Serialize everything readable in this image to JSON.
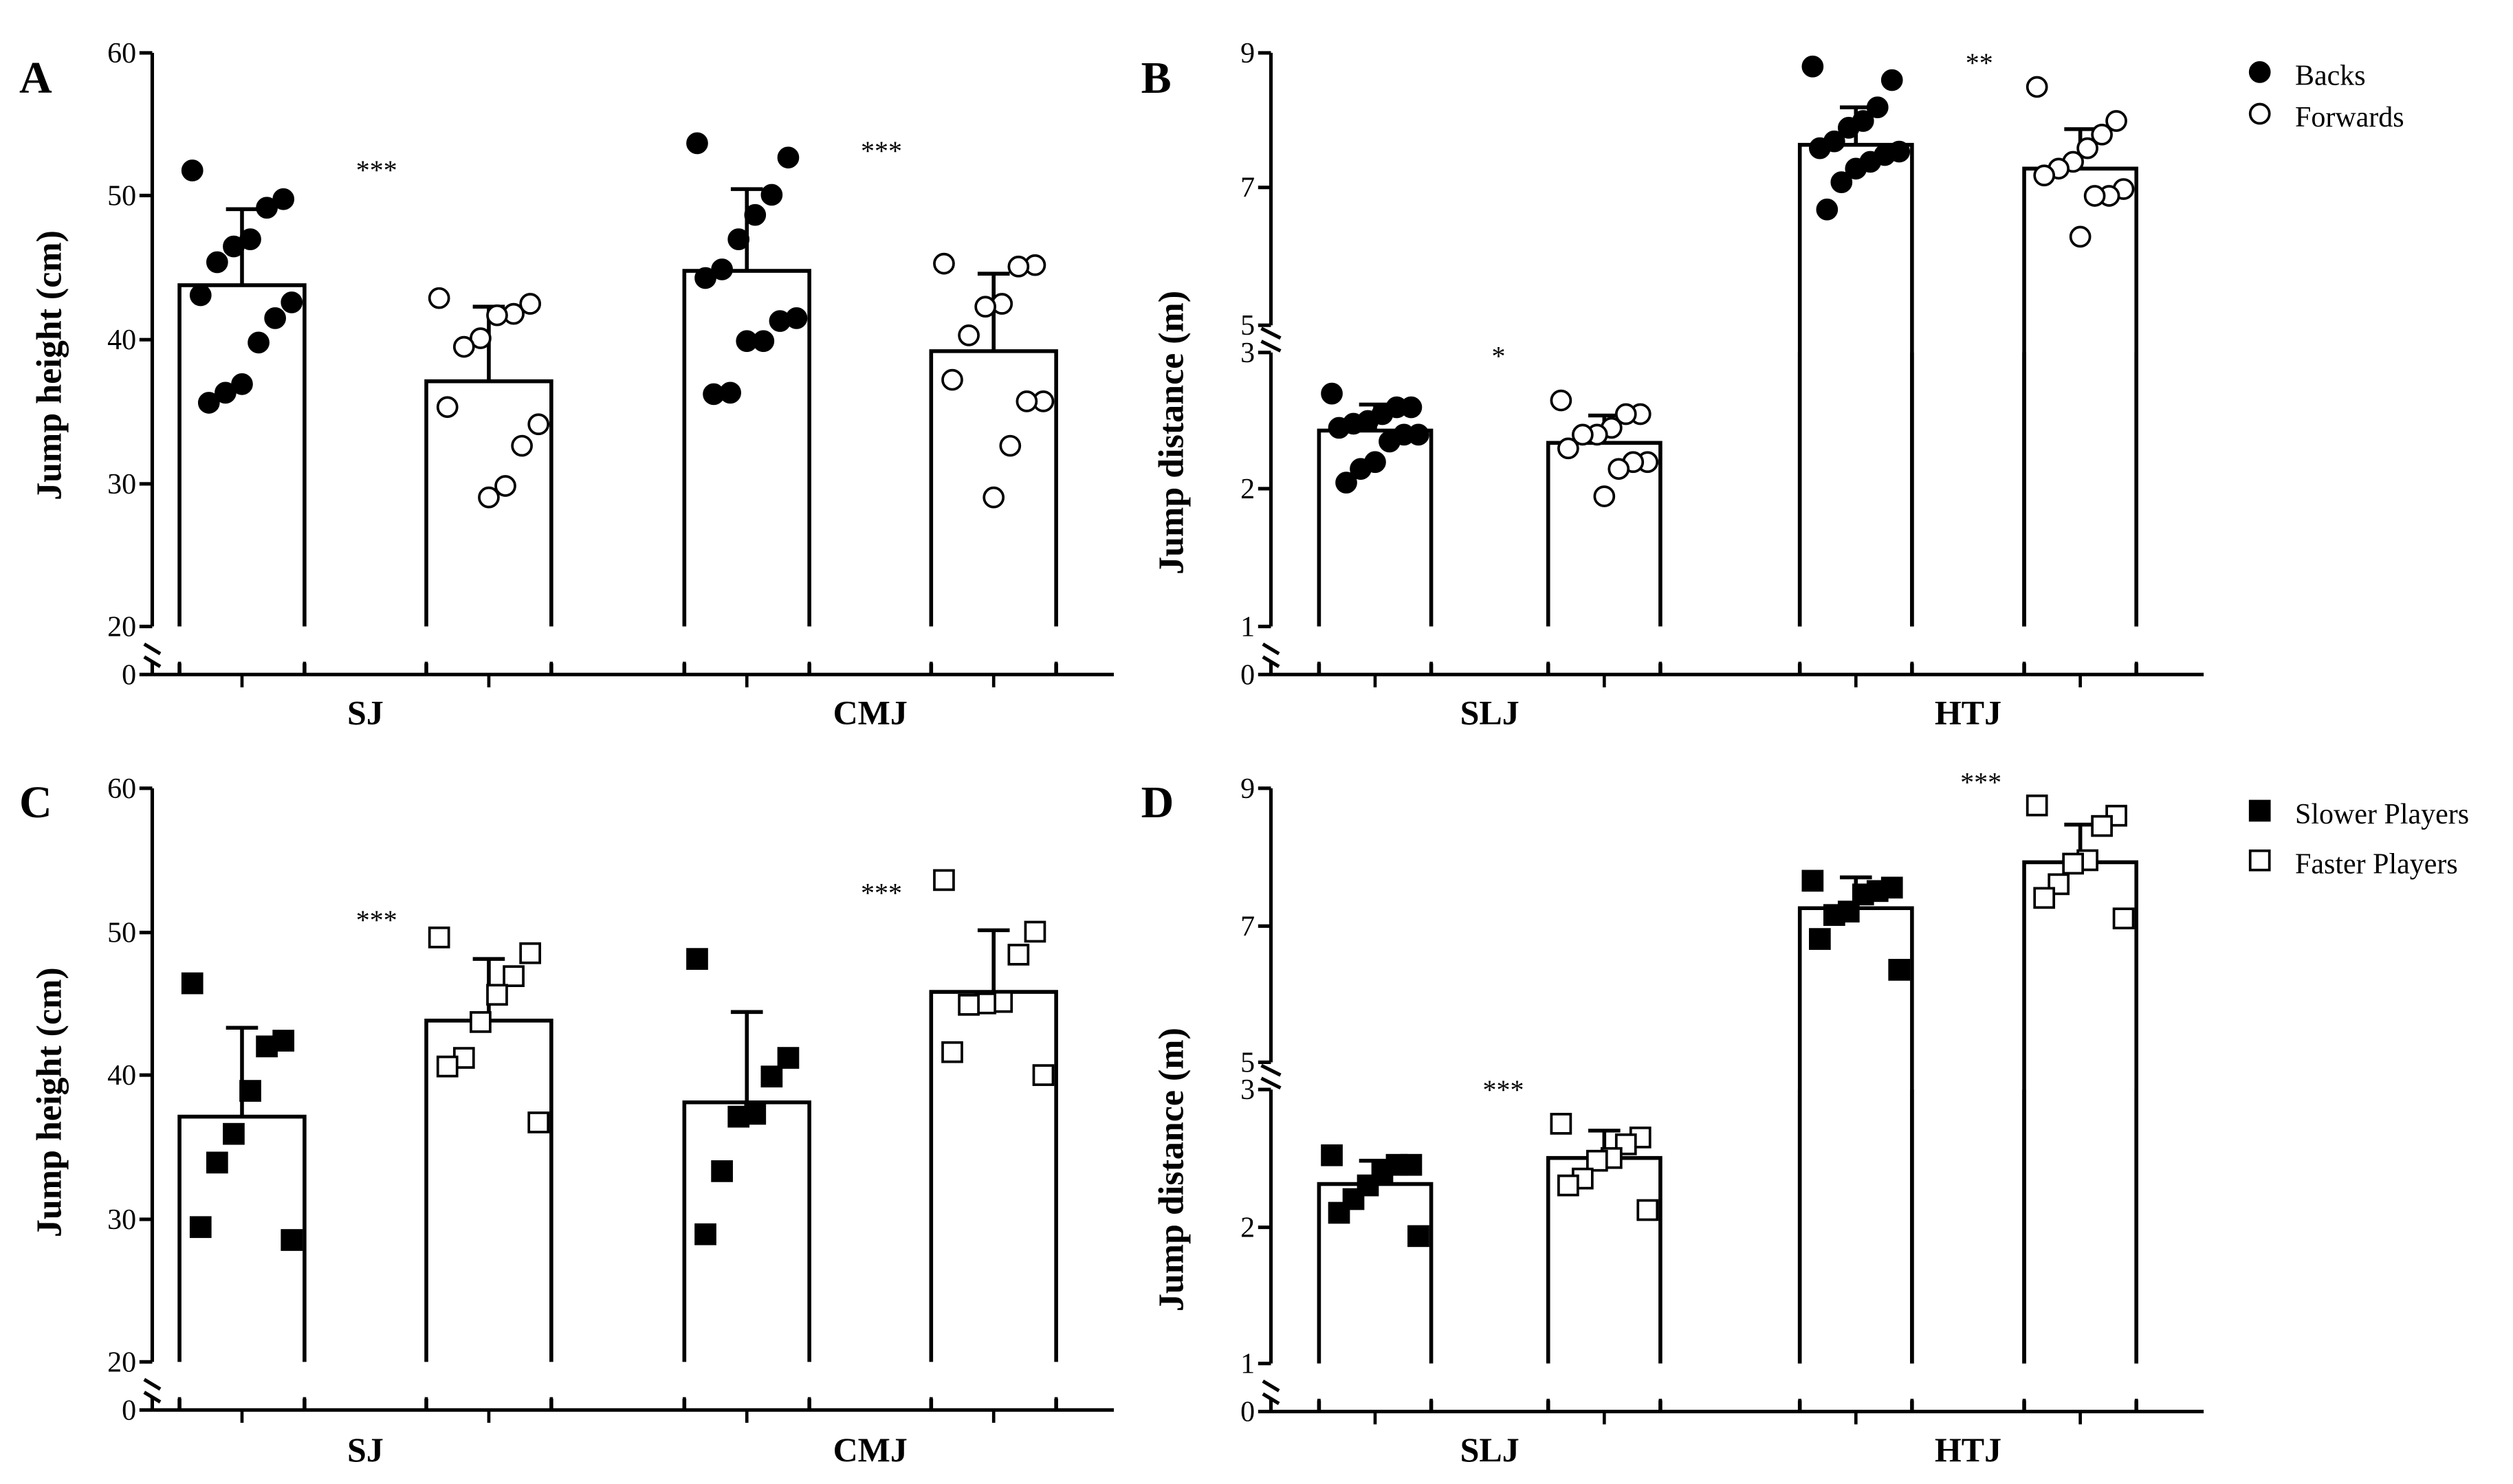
{
  "chart_data": [
    {
      "panel": "A",
      "type": "bar",
      "ylabel": "Jump height (cm)",
      "broken_axis": true,
      "yticks": [
        0,
        20,
        30,
        40,
        50,
        60
      ],
      "categories": [
        "SJ",
        "CMJ"
      ],
      "series": [
        {
          "name": "Backs",
          "marker": "filled-circle",
          "means": [
            43.8,
            44.8
          ],
          "sd": [
            5.3,
            5.7
          ],
          "points": [
            [
              51.8,
              49.8,
              49.2,
              47.0,
              46.5,
              45.4,
              43.1,
              42.6,
              41.5,
              39.8,
              36.9,
              36.3,
              35.6
            ],
            [
              53.7,
              52.7,
              50.1,
              48.7,
              47.0,
              44.9,
              44.3,
              41.5,
              41.3,
              39.9,
              39.9,
              36.3,
              36.2
            ]
          ]
        },
        {
          "name": "Forwards",
          "marker": "open-circle",
          "means": [
            37.1,
            39.2
          ],
          "sd": [
            5.2,
            5.4
          ],
          "points": [
            [
              42.9,
              42.5,
              41.8,
              41.7,
              40.1,
              39.5,
              35.3,
              34.1,
              32.6,
              29.8,
              29.0
            ],
            [
              45.3,
              45.2,
              45.1,
              42.5,
              42.3,
              40.3,
              37.2,
              35.7,
              35.7,
              32.6,
              29.0
            ]
          ]
        }
      ],
      "significance": [
        "***",
        "***"
      ]
    },
    {
      "panel": "B",
      "type": "bar",
      "ylabel": "Jump distance (m)",
      "broken_axis": true,
      "yticks": [
        0,
        1,
        2,
        3,
        5,
        7,
        9
      ],
      "categories": [
        "SLJ",
        "HTJ"
      ],
      "series": [
        {
          "name": "Backs",
          "marker": "filled-circle",
          "means": [
            2.43,
            7.65
          ],
          "sd": [
            0.19,
            0.55
          ],
          "points": [
            [
              2.7,
              2.6,
              2.6,
              2.55,
              2.5,
              2.48,
              2.45,
              2.4,
              2.4,
              2.35,
              2.2,
              2.15,
              2.05
            ],
            [
              8.8,
              8.6,
              8.2,
              8.0,
              7.9,
              7.7,
              7.6,
              7.55,
              7.5,
              7.4,
              7.3,
              7.1,
              6.7
            ]
          ]
        },
        {
          "name": "Forwards",
          "marker": "open-circle",
          "means": [
            2.34,
            7.3
          ],
          "sd": [
            0.2,
            0.58
          ],
          "points": [
            [
              2.65,
              2.55,
              2.55,
              2.45,
              2.4,
              2.4,
              2.3,
              2.2,
              2.2,
              2.15,
              1.95
            ],
            [
              8.5,
              8.0,
              7.8,
              7.6,
              7.4,
              7.3,
              7.2,
              7.0,
              6.9,
              6.9,
              6.3
            ]
          ]
        }
      ],
      "significance": [
        "*",
        "**"
      ],
      "legend": {
        "position": "top-right",
        "entries": [
          "Backs",
          "Forwards"
        ]
      }
    },
    {
      "panel": "C",
      "type": "bar",
      "ylabel": "Jump height (cm)",
      "broken_axis": true,
      "yticks": [
        0,
        20,
        30,
        40,
        50,
        60
      ],
      "categories": [
        "SJ",
        "CMJ"
      ],
      "series": [
        {
          "name": "Slower Players",
          "marker": "filled-square",
          "means": [
            37.1,
            38.1
          ],
          "sd": [
            6.2,
            6.3
          ],
          "points": [
            [
              46.4,
              42.4,
              42.0,
              38.9,
              35.9,
              33.9,
              29.4,
              28.5
            ],
            [
              48.1,
              41.2,
              39.9,
              37.3,
              37.1,
              33.3,
              28.9
            ]
          ]
        },
        {
          "name": "Faster Players",
          "marker": "open-square",
          "means": [
            43.8,
            45.8
          ],
          "sd": [
            4.3,
            4.3
          ],
          "points": [
            [
              49.6,
              48.5,
              46.9,
              45.6,
              43.7,
              41.2,
              40.6,
              36.7
            ],
            [
              53.6,
              50.0,
              48.4,
              45.1,
              45.0,
              44.9,
              41.6,
              40.0
            ]
          ]
        }
      ],
      "significance": [
        "***",
        "***"
      ]
    },
    {
      "panel": "D",
      "type": "bar",
      "ylabel": "Jump distance (m)",
      "broken_axis": true,
      "yticks": [
        0,
        1,
        2,
        3,
        5,
        7,
        9
      ],
      "categories": [
        "SLJ",
        "HTJ"
      ],
      "series": [
        {
          "name": "Slower Players",
          "marker": "filled-square",
          "means": [
            2.31,
            7.25
          ],
          "sd": [
            0.17,
            0.45
          ],
          "points": [
            [
              2.52,
              2.45,
              2.45,
              2.4,
              2.3,
              2.2,
              2.1,
              1.93
            ],
            [
              7.65,
              7.55,
              7.5,
              7.45,
              7.2,
              7.15,
              6.8,
              6.35
            ]
          ]
        },
        {
          "name": "Faster Players",
          "marker": "open-square",
          "means": [
            2.5,
            7.92
          ],
          "sd": [
            0.2,
            0.55
          ],
          "points": [
            [
              2.75,
              2.65,
              2.6,
              2.5,
              2.48,
              2.35,
              2.3,
              2.12
            ],
            [
              8.75,
              8.6,
              8.45,
              7.95,
              7.9,
              7.6,
              7.4,
              7.1
            ]
          ]
        }
      ],
      "significance": [
        "***",
        "***"
      ],
      "legend": {
        "position": "top-right",
        "entries": [
          "Slower Players",
          "Faster Players"
        ]
      }
    }
  ]
}
